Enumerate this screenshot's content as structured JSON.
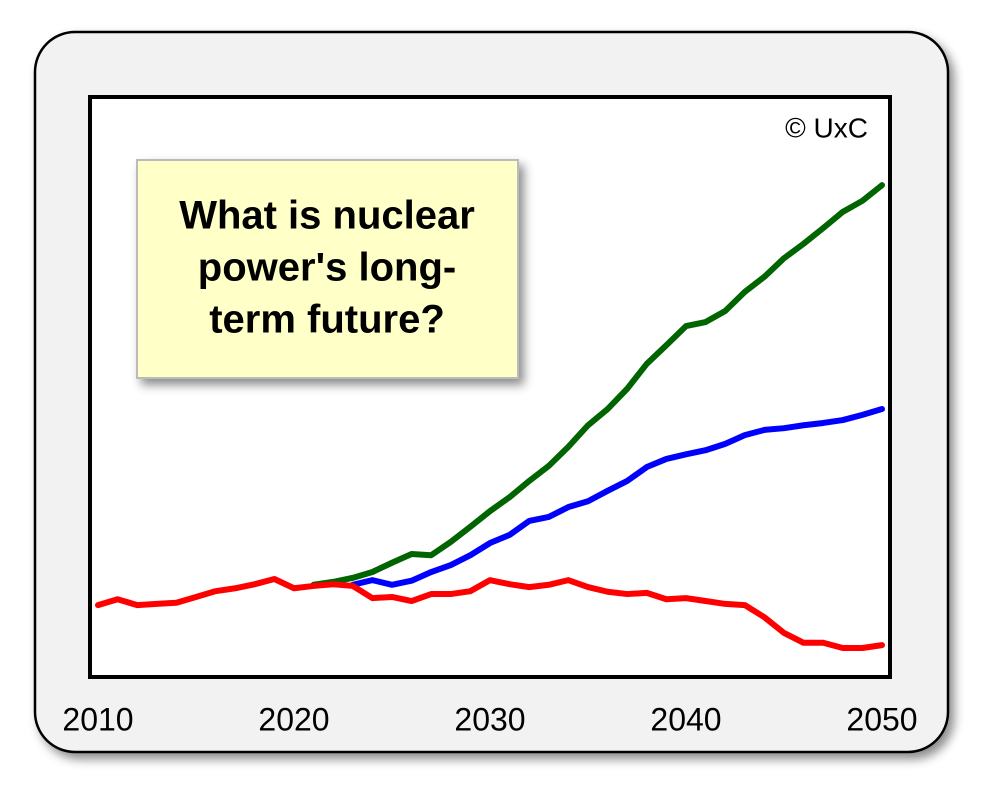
{
  "chart_data": {
    "type": "line",
    "annotation": "© UxC",
    "callout": [
      "What is nuclear",
      "power's long-",
      "term future?"
    ],
    "x": [
      2010,
      2011,
      2012,
      2013,
      2014,
      2015,
      2016,
      2017,
      2018,
      2019,
      2020,
      2021,
      2022,
      2023,
      2024,
      2025,
      2026,
      2027,
      2028,
      2029,
      2030,
      2031,
      2032,
      2033,
      2034,
      2035,
      2036,
      2037,
      2038,
      2039,
      2040,
      2041,
      2042,
      2043,
      2044,
      2045,
      2046,
      2047,
      2048,
      2049,
      2050
    ],
    "series": [
      {
        "color": "#006400",
        "values": [
          null,
          null,
          null,
          null,
          null,
          null,
          null,
          null,
          null,
          null,
          null,
          15.9,
          16.4,
          17.1,
          18.1,
          19.7,
          21.2,
          21,
          23.3,
          25.9,
          28.6,
          31,
          33.8,
          36.4,
          39.7,
          43.4,
          46.2,
          49.7,
          54,
          57.2,
          60.5,
          61.2,
          63.1,
          66.4,
          69,
          72.2,
          74.7,
          77.4,
          80.2,
          82.1,
          84.8
        ]
      },
      {
        "color": "#0000ff",
        "values": [
          null,
          null,
          null,
          null,
          null,
          null,
          null,
          null,
          null,
          null,
          null,
          null,
          null,
          15.9,
          16.7,
          15.9,
          16.6,
          18.1,
          19.3,
          21,
          23.1,
          24.5,
          26.9,
          27.6,
          29.3,
          30.3,
          32.1,
          33.8,
          36.2,
          37.6,
          38.4,
          39.1,
          40.2,
          41.7,
          42.6,
          42.9,
          43.4,
          43.8,
          44.3,
          45.2,
          46.2
        ]
      },
      {
        "color": "#ff0000",
        "values": [
          12.4,
          13.4,
          12.4,
          12.6,
          12.8,
          13.8,
          14.8,
          15.3,
          16,
          16.9,
          15.3,
          15.7,
          16,
          15.7,
          13.6,
          13.8,
          13.1,
          14.3,
          14.3,
          14.8,
          16.7,
          16,
          15.5,
          15.9,
          16.7,
          15.5,
          14.7,
          14.3,
          14.5,
          13.4,
          13.6,
          13.1,
          12.6,
          12.4,
          10.3,
          7.6,
          5.9,
          5.9,
          5,
          5,
          5.5
        ]
      }
    ],
    "xlim": [
      2010,
      2050
    ],
    "xticks": [
      2010,
      2020,
      2030,
      2040,
      2050
    ],
    "ylim": [
      0,
      100
    ]
  }
}
